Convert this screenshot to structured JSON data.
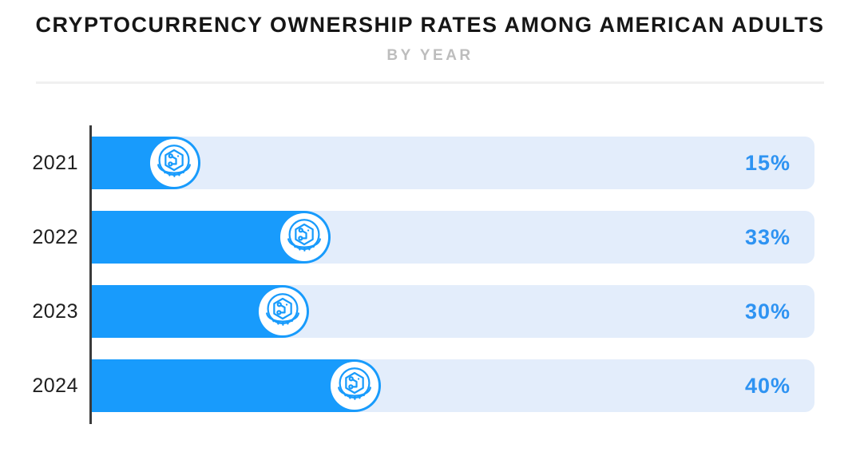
{
  "header": {
    "title": "CRYPTOCURRENCY OWNERSHIP RATES AMONG AMERICAN ADULTS",
    "subtitle": "BY YEAR"
  },
  "colors": {
    "accent_blue": "#189BFC",
    "track_light_blue": "#E3EDFB",
    "percent_label_blue": "#2E93F2",
    "title_black": "#161616",
    "subtitle_gray": "#BDBDBD",
    "axis_dark": "#3B3B3B",
    "divider_gray": "#F0F0F0"
  },
  "icons": {
    "bar_icon": "crypto-coin-icon"
  },
  "chart_data": {
    "type": "bar",
    "orientation": "horizontal",
    "title": "CRYPTOCURRENCY OWNERSHIP RATES AMONG AMERICAN ADULTS",
    "subtitle": "BY YEAR",
    "categories": [
      "2021",
      "2022",
      "2023",
      "2024"
    ],
    "values": [
      15,
      33,
      30,
      40
    ],
    "value_labels": [
      "15%",
      "33%",
      "30%",
      "40%"
    ],
    "xlabel": "",
    "ylabel": "",
    "xlim": [
      0,
      100
    ],
    "unit": "percent of American adults",
    "grid": false,
    "legend": false,
    "value_label_position": "inside-track-right",
    "bar_marker": "crypto-coin-icon"
  }
}
